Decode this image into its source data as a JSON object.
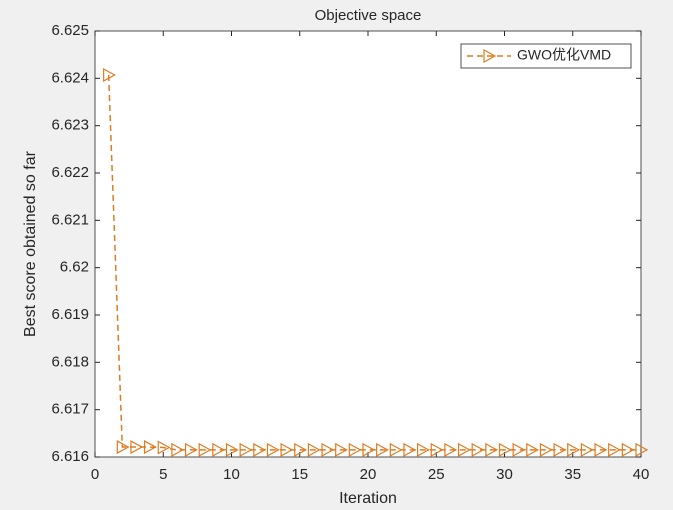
{
  "chart_data": {
    "type": "line",
    "title": "Objective space",
    "x_label": "Iteration",
    "y_label": "Best score obtained so far",
    "x": [
      1,
      2,
      3,
      4,
      5,
      6,
      7,
      8,
      9,
      10,
      11,
      12,
      13,
      14,
      15,
      16,
      17,
      18,
      19,
      20,
      21,
      22,
      23,
      24,
      25,
      26,
      27,
      28,
      29,
      30,
      31,
      32,
      33,
      34,
      35,
      36,
      37,
      38,
      39,
      40
    ],
    "series": [
      {
        "name": "GWO优化VMD",
        "color": "#e07b20",
        "values": [
          6.62407,
          6.61621,
          6.61621,
          6.61621,
          6.6162,
          6.61615,
          6.61615,
          6.61615,
          6.61615,
          6.61615,
          6.61615,
          6.61615,
          6.61615,
          6.61615,
          6.61615,
          6.61615,
          6.61615,
          6.61615,
          6.61615,
          6.61615,
          6.61615,
          6.61615,
          6.61615,
          6.61615,
          6.61615,
          6.61615,
          6.61615,
          6.61615,
          6.61615,
          6.61615,
          6.61615,
          6.61615,
          6.61615,
          6.61615,
          6.61615,
          6.61615,
          6.61615,
          6.61615,
          6.61615,
          6.61615
        ]
      }
    ],
    "xlim": [
      0,
      40
    ],
    "xticks": [
      0,
      5,
      10,
      15,
      20,
      25,
      30,
      35,
      40
    ],
    "ylim": [
      6.616,
      6.625
    ],
    "yticks": [
      6.616,
      6.617,
      6.618,
      6.619,
      6.62,
      6.621,
      6.622,
      6.623,
      6.624,
      6.625
    ],
    "legend": "upper right"
  }
}
